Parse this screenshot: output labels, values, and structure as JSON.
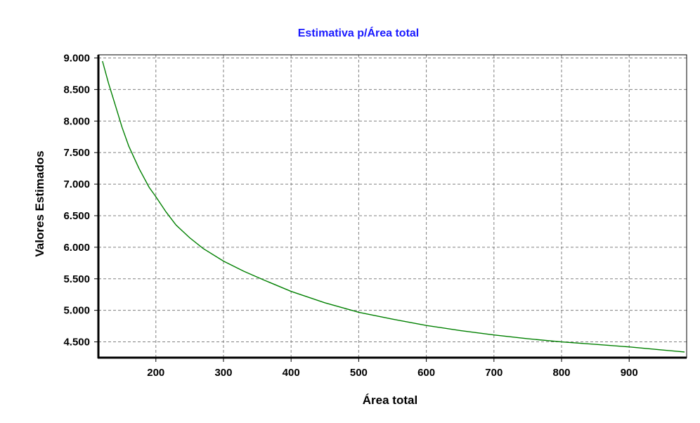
{
  "chart_data": {
    "type": "line",
    "title": "Estimativa p/Área total",
    "xlabel": "Área total",
    "ylabel": "Valores Estimados",
    "xlim": [
      115,
      985
    ],
    "ylim": [
      4250,
      9050
    ],
    "x_ticks": [
      200,
      300,
      400,
      500,
      600,
      700,
      800,
      900
    ],
    "x_tick_labels": [
      "200",
      "300",
      "400",
      "500",
      "600",
      "700",
      "800",
      "900"
    ],
    "y_ticks": [
      4500,
      5000,
      5500,
      6000,
      6500,
      7000,
      7500,
      8000,
      8500,
      9000
    ],
    "y_tick_labels": [
      "4.500",
      "5.000",
      "5.500",
      "6.000",
      "6.500",
      "7.000",
      "7.500",
      "8.000",
      "8.500",
      "9.000"
    ],
    "grid": true,
    "legend": "none",
    "colors": {
      "title": "#1a1aff",
      "line": "#008000",
      "grid": "#808080",
      "axes": "#000000"
    },
    "series": [
      {
        "x": [
          121,
          130,
          140,
          150,
          160,
          175,
          190,
          200,
          215,
          230,
          250,
          270,
          300,
          330,
          360,
          400,
          450,
          500,
          550,
          600,
          650,
          700,
          750,
          800,
          850,
          900,
          950,
          982
        ],
        "y": [
          8950,
          8600,
          8250,
          7900,
          7600,
          7250,
          6950,
          6800,
          6560,
          6350,
          6150,
          5980,
          5780,
          5620,
          5480,
          5300,
          5120,
          4970,
          4860,
          4760,
          4680,
          4610,
          4550,
          4500,
          4460,
          4420,
          4370,
          4340
        ]
      }
    ]
  }
}
